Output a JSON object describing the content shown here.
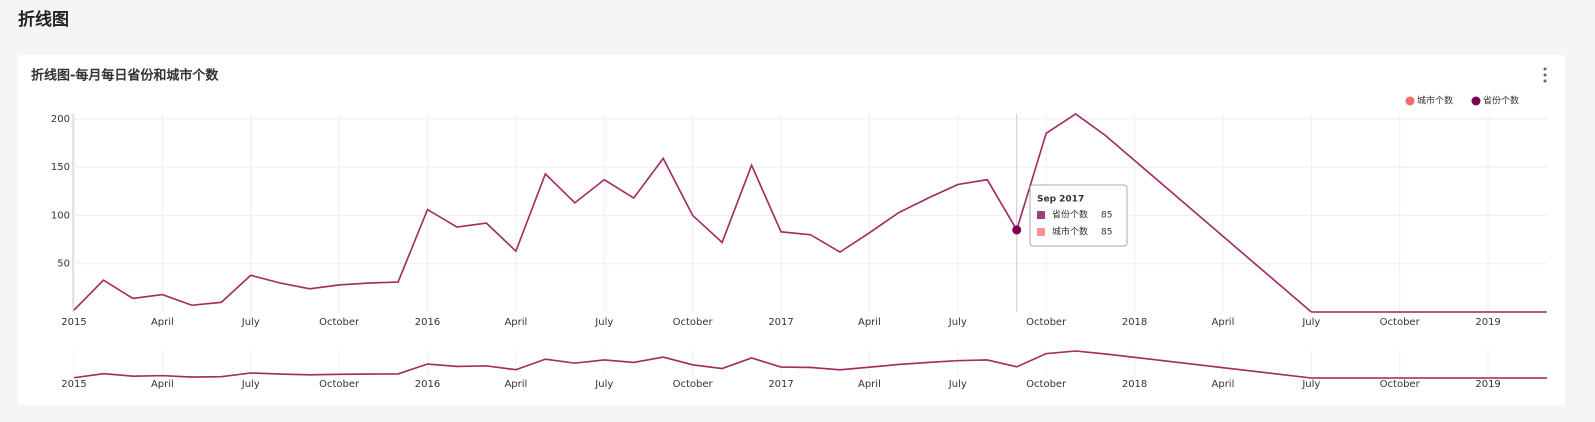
{
  "page": {
    "title": "折线图"
  },
  "chart_data": {
    "type": "line",
    "title": "折线图-每月每日省份和城市个数",
    "x": [
      "2015-01",
      "2015-02",
      "2015-03",
      "2015-04",
      "2015-05",
      "2015-06",
      "2015-07",
      "2015-08",
      "2015-09",
      "2015-10",
      "2015-11",
      "2015-12",
      "2016-01",
      "2016-02",
      "2016-03",
      "2016-04",
      "2016-05",
      "2016-06",
      "2016-07",
      "2016-08",
      "2016-09",
      "2016-10",
      "2016-11",
      "2016-12",
      "2017-01",
      "2017-02",
      "2017-03",
      "2017-04",
      "2017-05",
      "2017-06",
      "2017-07",
      "2017-08",
      "2017-09",
      "2017-10",
      "2017-11",
      "2017-12",
      "2018-07",
      "2018-08",
      "2018-09",
      "2018-10",
      "2018-11",
      "2018-12",
      "2019-01",
      "2019-02",
      "2019-03"
    ],
    "series": [
      {
        "name": "城市个数",
        "color": "#f86b6b",
        "values": [
          2,
          33,
          14,
          18,
          7,
          10,
          38,
          30,
          24,
          28,
          30,
          31,
          106,
          88,
          92,
          63,
          143,
          113,
          137,
          118,
          159,
          100,
          72,
          152,
          83,
          80,
          62,
          82,
          103,
          118,
          132,
          137,
          85,
          185,
          205,
          183,
          0,
          0,
          0,
          0,
          0,
          0,
          0,
          0,
          0
        ]
      },
      {
        "name": "省份个数",
        "color": "#7b0051",
        "values": [
          2,
          33,
          14,
          18,
          7,
          10,
          38,
          30,
          24,
          28,
          30,
          31,
          106,
          88,
          92,
          63,
          143,
          113,
          137,
          118,
          159,
          100,
          72,
          152,
          83,
          80,
          62,
          82,
          103,
          118,
          132,
          137,
          85,
          185,
          205,
          183,
          0,
          0,
          0,
          0,
          0,
          0,
          0,
          0,
          0
        ]
      }
    ],
    "xlim": [
      "2015-01",
      "2019-03"
    ],
    "xticks": [
      {
        "value": "2015-01",
        "label": "2015"
      },
      {
        "value": "2015-04",
        "label": "April"
      },
      {
        "value": "2015-07",
        "label": "July"
      },
      {
        "value": "2015-10",
        "label": "October"
      },
      {
        "value": "2016-01",
        "label": "2016"
      },
      {
        "value": "2016-04",
        "label": "April"
      },
      {
        "value": "2016-07",
        "label": "July"
      },
      {
        "value": "2016-10",
        "label": "October"
      },
      {
        "value": "2017-01",
        "label": "2017"
      },
      {
        "value": "2017-04",
        "label": "April"
      },
      {
        "value": "2017-07",
        "label": "July"
      },
      {
        "value": "2017-10",
        "label": "October"
      },
      {
        "value": "2018-01",
        "label": "2018"
      },
      {
        "value": "2018-04",
        "label": "April"
      },
      {
        "value": "2018-07",
        "label": "July"
      },
      {
        "value": "2018-10",
        "label": "October"
      },
      {
        "value": "2019-01",
        "label": "2019"
      }
    ],
    "ylim": [
      0,
      205
    ],
    "yticks": [
      50,
      100,
      150,
      200
    ],
    "grid": true,
    "tooltip": {
      "title": "Sep 2017",
      "index": 32
    }
  }
}
